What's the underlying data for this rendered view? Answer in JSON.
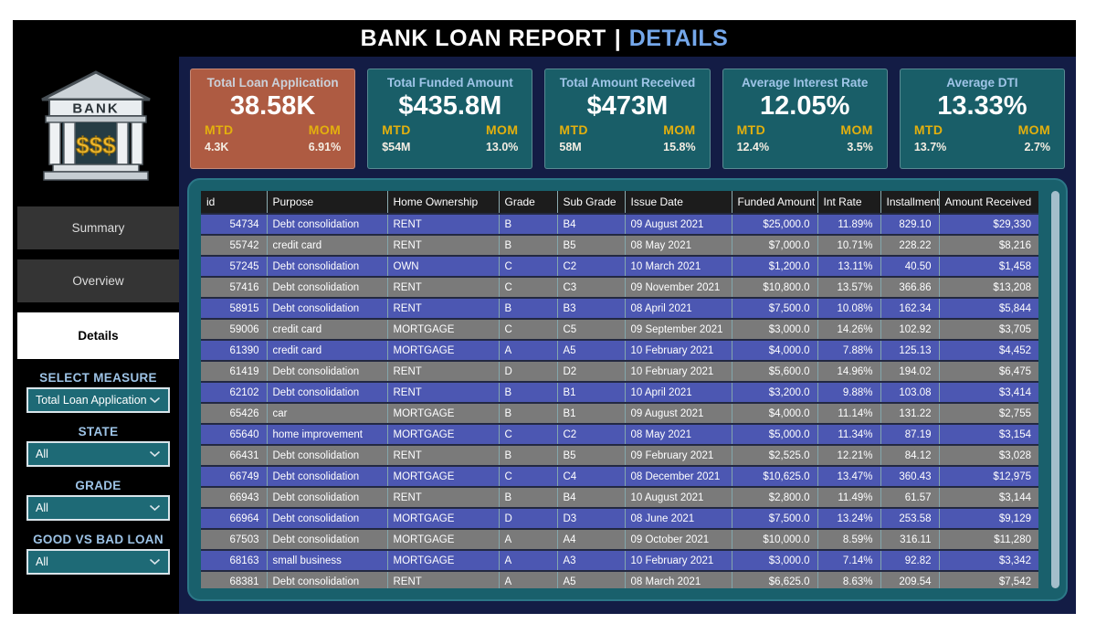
{
  "title": {
    "main": "BANK LOAN REPORT",
    "separator": "|",
    "page": "DETAILS"
  },
  "logo": {
    "bank_label": "BANK",
    "dollars": "$$$"
  },
  "sidebar": {
    "nav": [
      {
        "label": "Summary",
        "active": false
      },
      {
        "label": "Overview",
        "active": false
      },
      {
        "label": "Details",
        "active": true
      }
    ],
    "filters": [
      {
        "label": "SELECT MEASURE",
        "value": "Total Loan Application"
      },
      {
        "label": "STATE",
        "value": "All"
      },
      {
        "label": "GRADE",
        "value": "All"
      },
      {
        "label": "GOOD VS BAD LOAN",
        "value": "All"
      }
    ]
  },
  "kpi_cards": [
    {
      "title": "Total Loan Application",
      "value": "38.58K",
      "mtd_label": "MTD",
      "mom_label": "MOM",
      "mtd": "4.3K",
      "mom": "6.91%",
      "accent": "#AE5B42"
    },
    {
      "title": "Total Funded Amount",
      "value": "$435.8M",
      "mtd_label": "MTD",
      "mom_label": "MOM",
      "mtd": "$54M",
      "mom": "13.0%",
      "accent": "#195E68"
    },
    {
      "title": "Total Amount Received",
      "value": "$473M",
      "mtd_label": "MTD",
      "mom_label": "MOM",
      "mtd": "58M",
      "mom": "15.8%",
      "accent": "#195E68"
    },
    {
      "title": "Average Interest Rate",
      "value": "12.05%",
      "mtd_label": "MTD",
      "mom_label": "MOM",
      "mtd": "12.4%",
      "mom": "3.5%",
      "accent": "#195E68"
    },
    {
      "title": "Average DTI",
      "value": "13.33%",
      "mtd_label": "MTD",
      "mom_label": "MOM",
      "mtd": "13.7%",
      "mom": "2.7%",
      "accent": "#195E68"
    }
  ],
  "table": {
    "columns": [
      "id",
      "Purpose",
      "Home Ownership",
      "Grade",
      "Sub Grade",
      "Issue Date",
      "Funded Amount",
      "Int Rate",
      "Installment",
      "Amount Received"
    ],
    "rows": [
      [
        "54734",
        "Debt consolidation",
        "RENT",
        "B",
        "B4",
        "09 August 2021",
        "$25,000.0",
        "11.89%",
        "829.10",
        "$29,330"
      ],
      [
        "55742",
        "credit card",
        "RENT",
        "B",
        "B5",
        "08 May 2021",
        "$7,000.0",
        "10.71%",
        "228.22",
        "$8,216"
      ],
      [
        "57245",
        "Debt consolidation",
        "OWN",
        "C",
        "C2",
        "10 March 2021",
        "$1,200.0",
        "13.11%",
        "40.50",
        "$1,458"
      ],
      [
        "57416",
        "Debt consolidation",
        "RENT",
        "C",
        "C3",
        "09 November 2021",
        "$10,800.0",
        "13.57%",
        "366.86",
        "$13,208"
      ],
      [
        "58915",
        "Debt consolidation",
        "RENT",
        "B",
        "B3",
        "08 April 2021",
        "$7,500.0",
        "10.08%",
        "162.34",
        "$5,844"
      ],
      [
        "59006",
        "credit card",
        "MORTGAGE",
        "C",
        "C5",
        "09 September 2021",
        "$3,000.0",
        "14.26%",
        "102.92",
        "$3,705"
      ],
      [
        "61390",
        "credit card",
        "MORTGAGE",
        "A",
        "A5",
        "10 February 2021",
        "$4,000.0",
        "7.88%",
        "125.13",
        "$4,452"
      ],
      [
        "61419",
        "Debt consolidation",
        "RENT",
        "D",
        "D2",
        "10 February 2021",
        "$5,600.0",
        "14.96%",
        "194.02",
        "$6,475"
      ],
      [
        "62102",
        "Debt consolidation",
        "RENT",
        "B",
        "B1",
        "10 April 2021",
        "$3,200.0",
        "9.88%",
        "103.08",
        "$3,414"
      ],
      [
        "65426",
        "car",
        "MORTGAGE",
        "B",
        "B1",
        "09 August 2021",
        "$4,000.0",
        "11.14%",
        "131.22",
        "$2,755"
      ],
      [
        "65640",
        "home improvement",
        "MORTGAGE",
        "C",
        "C2",
        "08 May 2021",
        "$5,000.0",
        "11.34%",
        "87.19",
        "$3,154"
      ],
      [
        "66431",
        "Debt consolidation",
        "RENT",
        "B",
        "B5",
        "09 February 2021",
        "$2,525.0",
        "12.21%",
        "84.12",
        "$3,028"
      ],
      [
        "66749",
        "Debt consolidation",
        "MORTGAGE",
        "C",
        "C4",
        "08 December 2021",
        "$10,625.0",
        "13.47%",
        "360.43",
        "$12,975"
      ],
      [
        "66943",
        "Debt consolidation",
        "RENT",
        "B",
        "B4",
        "10 August 2021",
        "$2,800.0",
        "11.49%",
        "61.57",
        "$3,144"
      ],
      [
        "66964",
        "Debt consolidation",
        "MORTGAGE",
        "D",
        "D3",
        "08 June 2021",
        "$7,500.0",
        "13.24%",
        "253.58",
        "$9,129"
      ],
      [
        "67503",
        "Debt consolidation",
        "MORTGAGE",
        "A",
        "A4",
        "09 October 2021",
        "$10,000.0",
        "8.59%",
        "316.11",
        "$11,280"
      ],
      [
        "68163",
        "small business",
        "MORTGAGE",
        "A",
        "A3",
        "10 February 2021",
        "$3,000.0",
        "7.14%",
        "92.82",
        "$3,342"
      ],
      [
        "68381",
        "Debt consolidation",
        "RENT",
        "A",
        "A5",
        "08 March 2021",
        "$6,625.0",
        "8.63%",
        "209.54",
        "$7,542"
      ]
    ]
  },
  "colors": {
    "page_name_accent": "#74A7EA",
    "gold": "#E3B00E",
    "card_orange": "#AE5B42",
    "card_teal": "#195E68",
    "navy_panel": "#131C45",
    "table_teal": "#19606C",
    "row_blue": "#4C57B2",
    "row_gray": "#7A7A7A",
    "filter_label_blue": "#9DC3E6",
    "dropdown_teal": "#1E6A76"
  }
}
